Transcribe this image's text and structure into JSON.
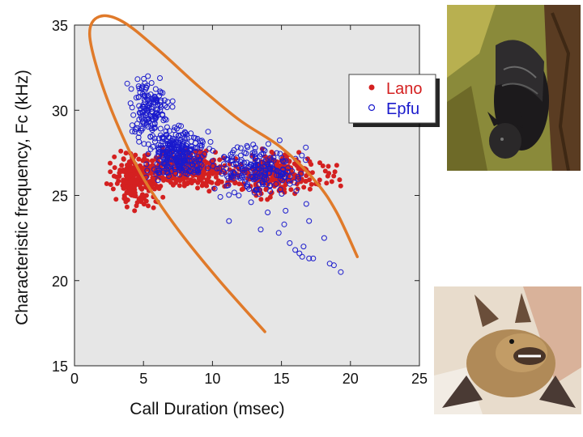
{
  "chart_data": {
    "type": "scatter",
    "title": "",
    "xlabel": "Call Duration (msec)",
    "ylabel": "Characteristic frequency, Fc (kHz)",
    "xlim": [
      0,
      25
    ],
    "ylim": [
      15,
      35
    ],
    "xticks": [
      "0",
      "5",
      "10",
      "15",
      "20",
      "25"
    ],
    "yticks": [
      "15",
      "20",
      "25",
      "30",
      "35"
    ],
    "grid": false,
    "legend_position": "top-right",
    "series": [
      {
        "name": "Lano",
        "marker": "filled-circle",
        "color": "#d42020",
        "clusters": [
          {
            "x_range": [
              2,
              7
            ],
            "y_range": [
              24,
              28
            ],
            "count": 260
          },
          {
            "x_range": [
              4.5,
              12
            ],
            "y_range": [
              25,
              28
            ],
            "count": 300
          },
          {
            "x_range": [
              10,
              18.5
            ],
            "y_range": [
              24.5,
              28
            ],
            "count": 260
          },
          {
            "x_range": [
              17.5,
              20
            ],
            "y_range": [
              25,
              27.5
            ],
            "count": 12
          }
        ]
      },
      {
        "name": "Epfu",
        "marker": "open-circle",
        "color": "#1a1acc",
        "clusters": [
          {
            "x_range": [
              3.5,
              7.5
            ],
            "y_range": [
              27.5,
              32.5
            ],
            "count": 150
          },
          {
            "x_range": [
              4.5,
              10.5
            ],
            "y_range": [
              25.5,
              29.5
            ],
            "count": 280
          },
          {
            "x_range": [
              9,
              17.5
            ],
            "y_range": [
              24.5,
              28.5
            ],
            "count": 200
          }
        ],
        "extra_points": [
          {
            "x": 11.2,
            "y": 23.5
          },
          {
            "x": 13.5,
            "y": 23.0
          },
          {
            "x": 14.0,
            "y": 24.0
          },
          {
            "x": 14.8,
            "y": 22.8
          },
          {
            "x": 15.2,
            "y": 23.3
          },
          {
            "x": 15.6,
            "y": 22.2
          },
          {
            "x": 16.0,
            "y": 21.8
          },
          {
            "x": 16.3,
            "y": 21.6
          },
          {
            "x": 16.5,
            "y": 21.4
          },
          {
            "x": 16.6,
            "y": 22.0
          },
          {
            "x": 17.0,
            "y": 21.3
          },
          {
            "x": 17.3,
            "y": 21.3
          },
          {
            "x": 17.0,
            "y": 23.5
          },
          {
            "x": 18.1,
            "y": 22.5
          },
          {
            "x": 18.5,
            "y": 21.0
          },
          {
            "x": 18.8,
            "y": 20.9
          },
          {
            "x": 19.3,
            "y": 20.5
          },
          {
            "x": 12.8,
            "y": 24.6
          },
          {
            "x": 15.3,
            "y": 24.1
          },
          {
            "x": 16.8,
            "y": 24.5
          }
        ]
      }
    ],
    "annotation_curve": {
      "description": "orange hand-drawn envelope enclosing the Epfu cluster",
      "color": "#e07a2a",
      "points": [
        [
          13.8,
          17.0
        ],
        [
          10.5,
          20.0
        ],
        [
          7.5,
          23.0
        ],
        [
          5.0,
          26.0
        ],
        [
          3.2,
          29.0
        ],
        [
          1.8,
          32.0
        ],
        [
          1.1,
          34.5
        ],
        [
          1.8,
          35.5
        ],
        [
          3.5,
          35.2
        ],
        [
          6.0,
          33.6
        ],
        [
          9.0,
          31.4
        ],
        [
          12.0,
          29.4
        ],
        [
          15.0,
          27.8
        ],
        [
          17.5,
          25.8
        ],
        [
          19.0,
          24.0
        ],
        [
          20.5,
          21.4
        ]
      ]
    }
  },
  "legend": {
    "items": [
      {
        "label": "Lano",
        "color": "#d42020",
        "marker": "filled-circle"
      },
      {
        "label": "Epfu",
        "color": "#1a1acc",
        "marker": "open-circle"
      }
    ]
  },
  "photos": [
    {
      "subject": "bat clinging to tree bark",
      "background_color": "#8a8a3a"
    },
    {
      "subject": "bat held in a hand",
      "background_color": "#e8dccc"
    }
  ]
}
